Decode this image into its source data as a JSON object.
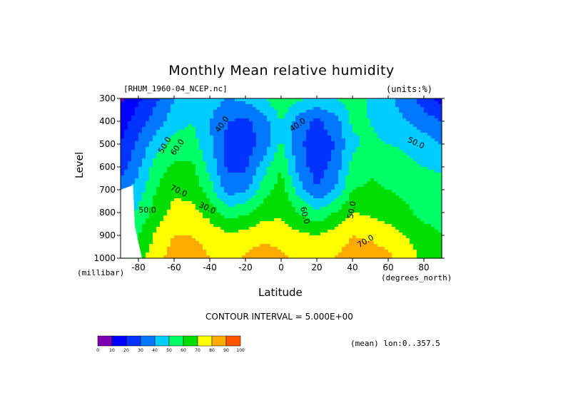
{
  "chart_data": {
    "type": "heatmap",
    "title": "Monthly Mean relative humidity",
    "dataset": "[RHUM_1960-04_NCEP.nc]",
    "units": "(units:%)",
    "xlabel": "Latitude",
    "xunit": "(degrees_north)",
    "ylabel": "Level",
    "yunit": "(millibar)",
    "x_range": [
      -90,
      90
    ],
    "y_range": [
      1000,
      300
    ],
    "x_ticks": [
      -80,
      -60,
      -40,
      -20,
      0,
      20,
      40,
      60,
      80
    ],
    "y_ticks": [
      300,
      400,
      500,
      600,
      700,
      800,
      900,
      1000
    ],
    "contour_interval": "CONTOUR INTERVAL = 5.000E+00",
    "mean_info": "(mean) lon:0..357.5",
    "contour_labels": [
      "40.0",
      "40.0",
      "50.0",
      "60.0",
      "70.0",
      "50.0",
      "30.0",
      "60.0",
      "50.0",
      "70.0",
      "50.0"
    ],
    "lat": [
      -90,
      -80,
      -70,
      -60,
      -50,
      -40,
      -30,
      -20,
      -10,
      0,
      10,
      20,
      30,
      40,
      50,
      60,
      70,
      80,
      90
    ],
    "levels": [
      300,
      400,
      500,
      600,
      700,
      800,
      900,
      1000
    ],
    "values": [
      [
        8,
        18,
        28,
        40,
        48,
        45,
        40,
        42,
        50,
        58,
        52,
        48,
        50,
        55,
        48,
        42,
        35,
        25,
        15
      ],
      [
        15,
        25,
        35,
        45,
        50,
        40,
        30,
        28,
        35,
        50,
        35,
        28,
        35,
        52,
        50,
        45,
        40,
        35,
        30
      ],
      [
        20,
        32,
        45,
        55,
        55,
        42,
        27,
        25,
        32,
        52,
        32,
        24,
        30,
        48,
        52,
        50,
        48,
        45,
        40
      ],
      [
        25,
        38,
        55,
        62,
        62,
        47,
        28,
        28,
        45,
        60,
        35,
        25,
        33,
        53,
        58,
        56,
        53,
        50,
        48
      ],
      [
        35,
        45,
        60,
        68,
        67,
        55,
        35,
        38,
        55,
        65,
        45,
        30,
        40,
        60,
        62,
        60,
        58,
        55,
        55
      ],
      [
        45,
        52,
        65,
        73,
        73,
        66,
        55,
        58,
        65,
        68,
        60,
        52,
        60,
        70,
        68,
        65,
        62,
        57,
        55
      ],
      [
        55,
        60,
        72,
        80,
        80,
        77,
        72,
        74,
        78,
        76,
        72,
        70,
        75,
        80,
        78,
        75,
        70,
        64,
        60
      ],
      [
        60,
        66,
        76,
        85,
        84,
        80,
        76,
        82,
        85,
        82,
        78,
        77,
        80,
        84,
        86,
        82,
        75,
        68,
        65
      ]
    ],
    "colorbar": {
      "ticks": [
        "0",
        "10",
        "20",
        "30",
        "40",
        "50",
        "60",
        "70",
        "80",
        "90",
        "100"
      ],
      "colors": [
        "#7f00b0",
        "#0000ff",
        "#0033ff",
        "#0077ff",
        "#00ccff",
        "#00ff66",
        "#00dd00",
        "#ffff00",
        "#ffaa00",
        "#ff5500",
        "#ff0000"
      ]
    }
  }
}
